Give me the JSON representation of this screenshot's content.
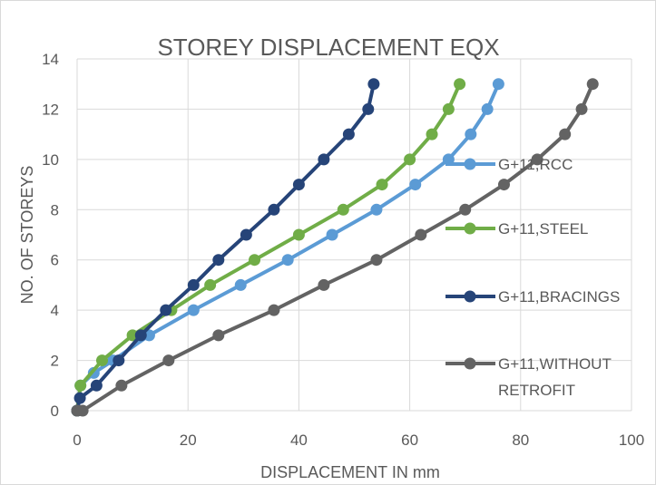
{
  "chart_data": {
    "type": "line",
    "title": "STOREY DISPLACEMENT EQX",
    "xlabel": "DISPLACEMENT IN mm",
    "ylabel": "NO. OF STOREYS",
    "xlim": [
      0,
      100
    ],
    "ylim": [
      0,
      14
    ],
    "xticks": [
      "0",
      "20",
      "40",
      "60",
      "80",
      "100"
    ],
    "yticks": [
      "0",
      "2",
      "4",
      "6",
      "8",
      "10",
      "12",
      "14"
    ],
    "grid": true,
    "legend_position": "right",
    "series": [
      {
        "name": "G+11,RCC",
        "color": "#5b9bd5",
        "x": [
          0.0,
          0.6,
          3.0,
          6.5,
          13.0,
          21.0,
          29.5,
          38.0,
          46.0,
          54.0,
          61.0,
          67.0,
          71.0,
          74.0,
          76.0
        ],
        "y": [
          0,
          1,
          1.5,
          2,
          3,
          4,
          5,
          6,
          7,
          8,
          9,
          10,
          11,
          12,
          13
        ]
      },
      {
        "name": "G+11,STEEL",
        "color": "#70ad47",
        "x": [
          0.0,
          0.6,
          4.5,
          10.0,
          17.0,
          24.0,
          32.0,
          40.0,
          48.0,
          55.0,
          60.0,
          64.0,
          67.0,
          69.0
        ],
        "y": [
          0,
          1,
          2,
          3,
          4,
          5,
          6,
          7,
          8,
          9,
          10,
          11,
          12,
          13
        ]
      },
      {
        "name": "G+11,BRACINGS",
        "color": "#264478",
        "x": [
          0.0,
          0.5,
          3.5,
          7.5,
          11.5,
          16.0,
          21.0,
          25.5,
          30.5,
          35.5,
          40.0,
          44.5,
          49.0,
          52.5,
          53.5
        ],
        "y": [
          0,
          0.5,
          1,
          2,
          3,
          4,
          5,
          6,
          7,
          8,
          9,
          10,
          11,
          12,
          13
        ]
      },
      {
        "name": "G+11,WITHOUT RETROFIT",
        "color": "#636363",
        "x": [
          0.0,
          1.0,
          8.0,
          16.5,
          25.5,
          35.5,
          44.5,
          54.0,
          62.0,
          70.0,
          77.0,
          83.0,
          88.0,
          91.0,
          93.0
        ],
        "y": [
          0,
          0,
          1,
          2,
          3,
          4,
          5,
          6,
          7,
          8,
          9,
          10,
          11,
          12,
          13
        ]
      }
    ]
  }
}
